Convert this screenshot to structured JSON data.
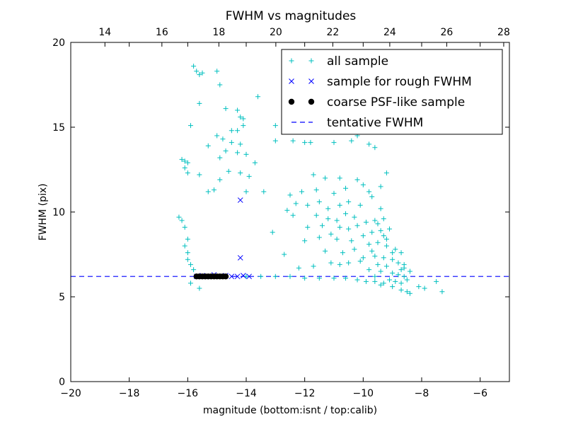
{
  "chart_data": {
    "type": "scatter",
    "title": "FWHM vs magnitudes",
    "xlabel": "magnitude (bottom:isnt / top:calib)",
    "ylabel": "FWHM (pix)",
    "xlim": [
      -20,
      -5
    ],
    "ylim": [
      0,
      20
    ],
    "xlim_top": [
      12.8,
      28.2
    ],
    "xticks": [
      -20,
      -18,
      -16,
      -14,
      -12,
      -10,
      -8,
      -6
    ],
    "xtick_labels": [
      "−20",
      "−18",
      "−16",
      "−14",
      "−12",
      "−10",
      "−8",
      "−6"
    ],
    "xticks_top": [
      14,
      16,
      18,
      20,
      22,
      24,
      26,
      28
    ],
    "xtick_labels_top": [
      "14",
      "16",
      "18",
      "20",
      "22",
      "24",
      "26",
      "28"
    ],
    "yticks": [
      0,
      5,
      10,
      15,
      20
    ],
    "ytick_labels": [
      "0",
      "5",
      "10",
      "15",
      "20"
    ],
    "grid": false,
    "legend_position": "top-right",
    "colors": {
      "all_sample": "#00bfbf",
      "rough_sample": "#0000ff",
      "psf_sample": "#000000",
      "tentative_fwhm": "#0000ff"
    },
    "series": [
      {
        "name": "all sample",
        "marker": "plus",
        "points": [
          [
            -15.8,
            18.6
          ],
          [
            -15.7,
            18.3
          ],
          [
            -15.6,
            18.1
          ],
          [
            -15.5,
            18.2
          ],
          [
            -15.0,
            18.3
          ],
          [
            -14.9,
            17.5
          ],
          [
            -13.6,
            16.8
          ],
          [
            -15.6,
            16.4
          ],
          [
            -14.7,
            16.1
          ],
          [
            -14.3,
            16.0
          ],
          [
            -14.2,
            15.6
          ],
          [
            -14.1,
            15.5
          ],
          [
            -15.9,
            15.1
          ],
          [
            -14.1,
            15.1
          ],
          [
            -14.5,
            14.8
          ],
          [
            -14.3,
            14.8
          ],
          [
            -13.0,
            15.1
          ],
          [
            -15.0,
            14.5
          ],
          [
            -14.8,
            14.3
          ],
          [
            -14.5,
            14.1
          ],
          [
            -14.2,
            14.0
          ],
          [
            -13.0,
            14.2
          ],
          [
            -12.4,
            14.2
          ],
          [
            -12.0,
            14.1
          ],
          [
            -11.8,
            14.1
          ],
          [
            -11.0,
            14.1
          ],
          [
            -10.4,
            14.2
          ],
          [
            -10.2,
            14.5
          ],
          [
            -9.8,
            14.0
          ],
          [
            -9.6,
            13.8
          ],
          [
            -15.3,
            13.9
          ],
          [
            -14.7,
            13.6
          ],
          [
            -14.3,
            13.5
          ],
          [
            -14.0,
            13.4
          ],
          [
            -14.9,
            13.2
          ],
          [
            -16.2,
            13.1
          ],
          [
            -16.1,
            13.0
          ],
          [
            -16.0,
            12.9
          ],
          [
            -16.1,
            12.6
          ],
          [
            -16.0,
            12.3
          ],
          [
            -14.6,
            12.4
          ],
          [
            -14.2,
            12.3
          ],
          [
            -13.7,
            12.9
          ],
          [
            -13.9,
            12.1
          ],
          [
            -14.9,
            11.9
          ],
          [
            -15.1,
            11.3
          ],
          [
            -15.3,
            11.2
          ],
          [
            -15.6,
            12.2
          ],
          [
            -13.4,
            11.2
          ],
          [
            -14.0,
            11.2
          ],
          [
            -11.7,
            12.2
          ],
          [
            -11.3,
            12.0
          ],
          [
            -10.8,
            12.0
          ],
          [
            -11.6,
            11.3
          ],
          [
            -11.0,
            11.1
          ],
          [
            -10.6,
            11.4
          ],
          [
            -10.2,
            11.9
          ],
          [
            -10.0,
            11.6
          ],
          [
            -9.8,
            11.2
          ],
          [
            -9.4,
            11.5
          ],
          [
            -12.1,
            11.2
          ],
          [
            -12.5,
            11.0
          ],
          [
            -12.3,
            10.5
          ],
          [
            -11.9,
            10.4
          ],
          [
            -11.5,
            10.6
          ],
          [
            -11.2,
            10.2
          ],
          [
            -10.8,
            10.4
          ],
          [
            -10.5,
            10.6
          ],
          [
            -10.1,
            10.4
          ],
          [
            -9.7,
            10.9
          ],
          [
            -16.3,
            9.7
          ],
          [
            -16.2,
            9.5
          ],
          [
            -16.1,
            9.1
          ],
          [
            -12.6,
            10.1
          ],
          [
            -12.4,
            9.8
          ],
          [
            -11.6,
            9.8
          ],
          [
            -11.2,
            9.6
          ],
          [
            -10.9,
            9.5
          ],
          [
            -10.6,
            9.9
          ],
          [
            -10.3,
            9.7
          ],
          [
            -13.1,
            8.8
          ],
          [
            -11.9,
            9.1
          ],
          [
            -11.4,
            9.2
          ],
          [
            -11.1,
            8.7
          ],
          [
            -10.8,
            9.1
          ],
          [
            -10.5,
            9.0
          ],
          [
            -10.2,
            9.2
          ],
          [
            -9.9,
            9.4
          ],
          [
            -9.6,
            9.5
          ],
          [
            -9.3,
            9.6
          ],
          [
            -16.0,
            8.4
          ],
          [
            -16.1,
            8.0
          ],
          [
            -12.0,
            8.3
          ],
          [
            -11.5,
            8.5
          ],
          [
            -10.9,
            8.4
          ],
          [
            -10.4,
            8.3
          ],
          [
            -10.0,
            8.6
          ],
          [
            -9.7,
            8.8
          ],
          [
            -9.4,
            8.9
          ],
          [
            -9.1,
            9.0
          ],
          [
            -16.0,
            7.6
          ],
          [
            -16.0,
            7.2
          ],
          [
            -15.9,
            6.9
          ],
          [
            -15.8,
            6.6
          ],
          [
            -12.7,
            7.5
          ],
          [
            -11.3,
            7.7
          ],
          [
            -10.7,
            7.6
          ],
          [
            -10.3,
            7.8
          ],
          [
            -9.8,
            8.1
          ],
          [
            -9.5,
            8.2
          ],
          [
            -9.2,
            8.0
          ],
          [
            -8.9,
            7.8
          ],
          [
            -8.7,
            7.6
          ],
          [
            -9.6,
            7.4
          ],
          [
            -9.3,
            7.3
          ],
          [
            -9.0,
            7.2
          ],
          [
            -8.8,
            7.0
          ],
          [
            -8.6,
            6.9
          ],
          [
            -9.5,
            6.9
          ],
          [
            -9.2,
            6.8
          ],
          [
            -10.1,
            7.1
          ],
          [
            -10.5,
            7.0
          ],
          [
            -10.8,
            6.9
          ],
          [
            -11.1,
            7.0
          ],
          [
            -11.7,
            6.8
          ],
          [
            -12.2,
            6.7
          ],
          [
            -9.8,
            6.6
          ],
          [
            -9.4,
            6.5
          ],
          [
            -9.0,
            6.4
          ],
          [
            -8.8,
            6.3
          ],
          [
            -8.6,
            6.2
          ],
          [
            -8.5,
            6.0
          ],
          [
            -8.7,
            5.8
          ],
          [
            -8.9,
            5.9
          ],
          [
            -9.1,
            6.0
          ],
          [
            -9.3,
            5.8
          ],
          [
            -9.6,
            5.9
          ],
          [
            -9.9,
            5.9
          ],
          [
            -10.2,
            6.0
          ],
          [
            -10.6,
            6.1
          ],
          [
            -11.0,
            6.1
          ],
          [
            -11.5,
            6.1
          ],
          [
            -12.0,
            6.1
          ],
          [
            -12.5,
            6.2
          ],
          [
            -13.0,
            6.2
          ],
          [
            -13.5,
            6.2
          ],
          [
            -14.0,
            6.2
          ],
          [
            -9.4,
            5.7
          ],
          [
            -9.0,
            5.6
          ],
          [
            -8.7,
            5.4
          ],
          [
            -8.5,
            5.3
          ],
          [
            -8.4,
            5.2
          ],
          [
            -8.1,
            5.6
          ],
          [
            -7.9,
            5.5
          ],
          [
            -7.3,
            5.3
          ],
          [
            -7.5,
            5.9
          ],
          [
            -8.4,
            6.5
          ],
          [
            -8.6,
            6.7
          ],
          [
            -8.7,
            6.6
          ],
          [
            -9.0,
            7.6
          ],
          [
            -15.6,
            5.5
          ],
          [
            -15.9,
            5.8
          ],
          [
            -9.2,
            12.3
          ],
          [
            -9.4,
            10.2
          ],
          [
            -9.5,
            9.3
          ],
          [
            -9.3,
            8.6
          ],
          [
            -9.2,
            8.4
          ],
          [
            -9.7,
            7.7
          ],
          [
            -10.0,
            7.3
          ],
          [
            -9.6,
            6.2
          ]
        ]
      },
      {
        "name": "sample for rough FWHM",
        "marker": "x",
        "points": [
          [
            -14.2,
            10.7
          ],
          [
            -14.2,
            7.3
          ],
          [
            -15.7,
            6.2
          ],
          [
            -15.5,
            6.25
          ],
          [
            -15.3,
            6.2
          ],
          [
            -15.1,
            6.3
          ],
          [
            -14.9,
            6.2
          ],
          [
            -14.7,
            6.25
          ],
          [
            -14.5,
            6.2
          ],
          [
            -14.3,
            6.2
          ],
          [
            -14.1,
            6.25
          ],
          [
            -13.9,
            6.2
          ]
        ]
      },
      {
        "name": "coarse PSF-like sample",
        "marker": "dot",
        "points": [
          [
            -15.7,
            6.2
          ],
          [
            -15.6,
            6.2
          ],
          [
            -15.5,
            6.2
          ],
          [
            -15.4,
            6.2
          ],
          [
            -15.3,
            6.2
          ],
          [
            -15.2,
            6.2
          ],
          [
            -15.1,
            6.2
          ],
          [
            -15.0,
            6.2
          ],
          [
            -14.9,
            6.2
          ],
          [
            -14.8,
            6.2
          ],
          [
            -14.7,
            6.2
          ]
        ]
      },
      {
        "name": "tentative FWHM",
        "marker": "dashed-line",
        "y": 6.2
      }
    ]
  }
}
